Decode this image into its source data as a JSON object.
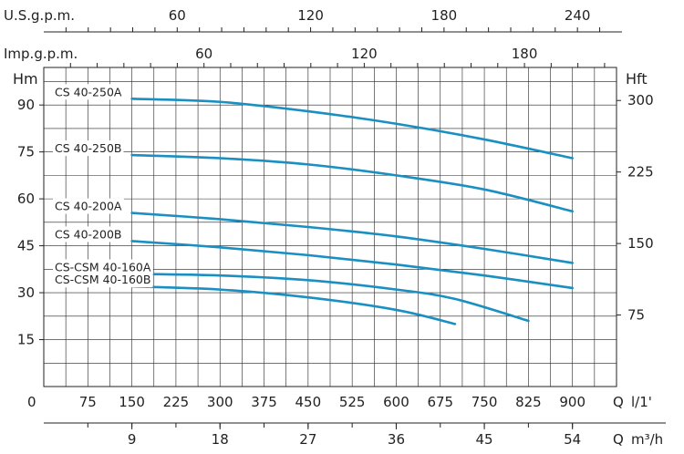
{
  "chart_data": {
    "type": "line",
    "title": "",
    "x": {
      "unit": "Q l/1'",
      "range": [
        0,
        975
      ],
      "ticks": [
        0,
        75,
        150,
        225,
        300,
        375,
        450,
        525,
        600,
        675,
        750,
        825,
        900
      ],
      "tick_labels": [
        "0",
        "75",
        "150",
        "225",
        "300",
        "375",
        "450",
        "525",
        "600",
        "675",
        "750",
        "825",
        "900"
      ],
      "label_left": "Q",
      "label_right": "l/1'"
    },
    "x_m3h": {
      "label_left": "Q",
      "label_right": "m³/h",
      "ticks": [
        9,
        18,
        27,
        36,
        45,
        54
      ],
      "tick_labels": [
        "9",
        "18",
        "27",
        "36",
        "45",
        "54"
      ]
    },
    "x_usgpm": {
      "label": "U.S.g.p.m.",
      "ticks": [
        60,
        120,
        180,
        240
      ],
      "tick_labels": [
        "60",
        "120",
        "180",
        "240"
      ]
    },
    "x_impgpm": {
      "label": "Imp.g.p.m.",
      "ticks": [
        60,
        120,
        180
      ],
      "tick_labels": [
        "60",
        "120",
        "180"
      ]
    },
    "y": {
      "label": "Hm",
      "range": [
        0,
        102
      ],
      "ticks": [
        15,
        30,
        45,
        60,
        75,
        90
      ],
      "tick_labels": [
        "15",
        "30",
        "45",
        "60",
        "75",
        "90"
      ]
    },
    "y_right": {
      "label": "Hft",
      "ticks": [
        75,
        150,
        225,
        300
      ],
      "tick_labels": [
        "75",
        "150",
        "225",
        "300"
      ]
    },
    "grid": true,
    "zero_label": "0",
    "series": [
      {
        "name": "CS 40-250A",
        "x": [
          150,
          300,
          450,
          600,
          750,
          900
        ],
        "y": [
          92,
          91,
          88,
          84,
          79,
          73
        ]
      },
      {
        "name": "CS 40-250B",
        "x": [
          150,
          300,
          450,
          600,
          750,
          900
        ],
        "y": [
          74,
          73,
          71,
          67.5,
          63,
          56
        ]
      },
      {
        "name": "CS 40-200A",
        "x": [
          150,
          300,
          450,
          600,
          750,
          900
        ],
        "y": [
          55.5,
          53.5,
          51,
          48,
          44,
          39.5
        ]
      },
      {
        "name": "CS 40-200B",
        "x": [
          150,
          300,
          450,
          600,
          750,
          900
        ],
        "y": [
          46.5,
          44.5,
          42,
          39,
          35.5,
          31.5
        ]
      },
      {
        "name": "CS-CSM 40-160A",
        "x": [
          150,
          300,
          450,
          600,
          700,
          825
        ],
        "y": [
          36,
          35.5,
          34,
          31,
          28,
          21
        ]
      },
      {
        "name": "CS-CSM 40-160B",
        "x": [
          150,
          300,
          450,
          600,
          700
        ],
        "y": [
          32,
          31,
          28.5,
          24.5,
          20
        ]
      }
    ],
    "line_color": "#1a8fc2"
  }
}
